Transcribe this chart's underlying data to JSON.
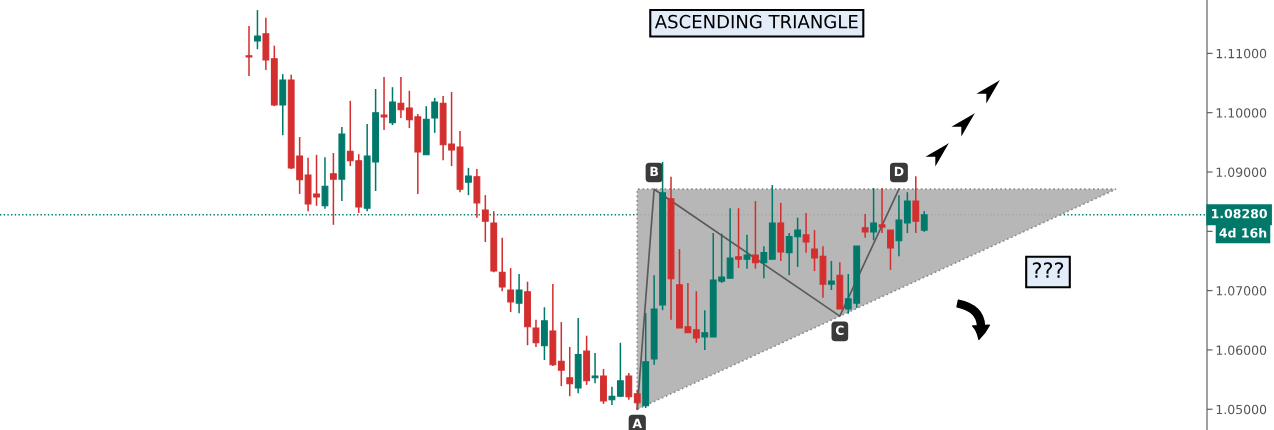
{
  "chart_data": {
    "type": "candlestick",
    "title": "ASCENDING TRIANGLE",
    "categories": [
      null,
      null,
      null,
      null,
      null,
      null,
      null,
      null,
      null,
      null,
      null,
      null,
      null,
      null,
      null,
      null,
      null,
      null,
      null,
      null,
      null,
      null,
      null,
      null,
      null,
      null,
      null,
      null,
      null,
      null,
      null,
      null,
      null,
      null,
      null,
      null,
      null,
      null,
      null,
      null,
      null,
      null,
      null,
      null,
      null,
      null,
      null,
      null,
      null,
      null,
      null,
      null,
      null,
      null,
      null,
      null,
      null,
      null,
      null,
      null,
      null,
      null,
      null,
      null,
      null,
      null,
      null,
      null,
      null,
      null,
      null,
      null,
      null,
      null,
      null,
      null,
      null,
      null,
      null,
      null,
      null,
      null,
      null,
      null,
      null,
      null,
      null,
      null,
      null,
      null,
      null,
      null,
      null,
      null,
      null,
      null,
      null,
      null,
      null,
      null,
      null,
      null,
      null,
      null,
      null,
      null,
      null,
      null,
      null,
      null,
      null,
      null,
      null,
      null,
      null,
      null,
      null,
      null,
      null,
      null,
      null,
      null,
      null,
      null,
      null,
      null,
      null,
      null,
      null,
      null,
      null,
      null,
      null,
      null,
      null,
      null,
      null,
      null,
      null,
      null,
      null,
      null,
      null
    ],
    "ohlc": [
      null,
      null,
      null,
      null,
      null,
      null,
      null,
      null,
      null,
      null,
      null,
      null,
      null,
      null,
      null,
      null,
      null,
      null,
      null,
      null,
      null,
      null,
      null,
      null,
      null,
      null,
      null,
      null,
      null,
      [
        1.1096,
        1.1146,
        1.1062,
        1.1094
      ],
      [
        1.1121,
        1.1173,
        1.1107,
        1.1129
      ],
      [
        1.1133,
        1.116,
        1.1072,
        1.1089
      ],
      [
        1.1091,
        1.1113,
        1.1011,
        1.1013
      ],
      [
        1.1013,
        1.1065,
        1.0962,
        1.1055
      ],
      [
        1.1055,
        1.1064,
        1.0905,
        1.0907
      ],
      [
        1.0927,
        1.0959,
        1.0863,
        1.0887
      ],
      [
        1.0895,
        1.0924,
        1.0834,
        1.0846
      ],
      [
        1.0863,
        1.0929,
        1.0843,
        1.0858
      ],
      [
        1.0843,
        1.0925,
        1.0838,
        1.0876
      ],
      [
        1.0897,
        1.0932,
        1.0811,
        1.0888
      ],
      [
        1.0888,
        1.0976,
        1.0851,
        1.0964
      ],
      [
        1.0935,
        1.102,
        1.091,
        1.0919
      ],
      [
        1.0919,
        1.093,
        1.0831,
        1.0841
      ],
      [
        1.0839,
        1.0981,
        1.0834,
        1.0927
      ],
      [
        1.0917,
        1.104,
        1.0868,
        1.1
      ],
      [
        1.0996,
        1.106,
        1.0971,
        1.0993
      ],
      [
        1.0983,
        1.1043,
        1.0979,
        1.1018
      ],
      [
        1.1016,
        1.106,
        1.0991,
        1.1005
      ],
      [
        1.1008,
        1.1037,
        1.0974,
        1.0988
      ],
      [
        1.0993,
        1.0998,
        1.0863,
        1.0934
      ],
      [
        1.0929,
        1.1011,
        1.0929,
        1.0989
      ],
      [
        1.0991,
        1.1025,
        1.0966,
        1.1018
      ],
      [
        1.1016,
        1.1028,
        1.092,
        1.0946
      ],
      [
        1.0947,
        1.1035,
        1.091,
        1.0937
      ],
      [
        1.0942,
        1.0969,
        1.0866,
        1.0871
      ],
      [
        1.0883,
        1.0907,
        1.0861,
        1.0893
      ],
      [
        1.0892,
        1.0905,
        1.0823,
        1.0848
      ],
      [
        1.0836,
        1.0861,
        1.0782,
        1.0817
      ],
      [
        1.0814,
        1.0834,
        1.0731,
        1.0733
      ],
      [
        1.0731,
        1.0789,
        1.0699,
        1.0706
      ],
      [
        1.0701,
        1.0738,
        1.0664,
        1.0681
      ],
      [
        1.0679,
        1.0728,
        1.0662,
        1.0701
      ],
      [
        1.0698,
        1.0715,
        1.0608,
        1.0639
      ],
      [
        1.0637,
        1.0651,
        1.0605,
        1.0612
      ],
      [
        1.0607,
        1.0672,
        1.0583,
        1.0649
      ],
      [
        1.0632,
        1.0711,
        1.0573,
        1.0575
      ],
      [
        1.0581,
        1.0647,
        1.0539,
        1.0566
      ],
      [
        1.0553,
        1.0605,
        1.0522,
        1.0543
      ],
      [
        1.0536,
        1.0654,
        1.0527,
        1.0592
      ],
      [
        1.0598,
        1.0624,
        1.0541,
        1.0548
      ],
      [
        1.0553,
        1.0595,
        1.0544,
        1.0556
      ],
      [
        1.0556,
        1.0568,
        1.0509,
        1.0514
      ],
      [
        1.0516,
        1.0538,
        1.0507,
        1.0522
      ],
      [
        1.0522,
        1.0612,
        1.0521,
        1.0548
      ],
      [
        1.0556,
        1.0561,
        1.0516,
        1.0521
      ],
      [
        1.0526,
        1.0533,
        1.05,
        1.0511
      ],
      [
        1.0506,
        1.0662,
        1.0502,
        1.058
      ],
      [
        1.0585,
        1.0726,
        1.0575,
        1.0669
      ],
      [
        1.0676,
        1.0917,
        1.0667,
        1.0865
      ],
      [
        1.0855,
        1.0892,
        1.0651,
        1.072
      ],
      [
        1.071,
        1.077,
        1.0637,
        1.0637
      ],
      [
        1.0639,
        1.0713,
        1.0629,
        1.0629
      ],
      [
        1.0634,
        1.0699,
        1.0612,
        1.062
      ],
      [
        1.0622,
        1.0667,
        1.06,
        1.0629
      ],
      [
        1.0622,
        1.0797,
        1.0622,
        1.0718
      ],
      [
        1.0716,
        1.0796,
        1.0713,
        1.0723
      ],
      [
        1.0721,
        1.0839,
        1.0721,
        1.0755
      ],
      [
        1.0757,
        1.0839,
        1.0738,
        1.0753
      ],
      [
        1.0753,
        1.0794,
        1.0737,
        1.076
      ],
      [
        1.076,
        1.0851,
        1.0737,
        1.0747
      ],
      [
        1.0747,
        1.0775,
        1.0721,
        1.0764
      ],
      [
        1.0753,
        1.0878,
        1.0753,
        1.0814
      ],
      [
        1.0814,
        1.0848,
        1.075,
        1.0765
      ],
      [
        1.0764,
        1.0797,
        1.0726,
        1.0791
      ],
      [
        1.0791,
        1.0823,
        1.074,
        1.0802
      ],
      [
        1.0794,
        1.0831,
        1.0764,
        1.0782
      ],
      [
        1.077,
        1.0802,
        1.0733,
        1.0755
      ],
      [
        1.0758,
        1.0775,
        1.0688,
        1.0711
      ],
      [
        1.0711,
        1.075,
        1.0701,
        1.0716
      ],
      [
        1.0726,
        1.0748,
        1.0669,
        1.0669
      ],
      [
        1.0669,
        1.0728,
        1.0661,
        1.0686
      ],
      [
        1.0679,
        1.0775,
        1.0671,
        1.0775
      ],
      [
        1.0806,
        1.0829,
        1.0789,
        1.0799
      ],
      [
        1.0799,
        1.0873,
        1.0785,
        1.0814
      ],
      [
        1.0811,
        1.0873,
        1.0797,
        1.0807
      ],
      [
        1.0802,
        1.0802,
        1.0735,
        1.0772
      ],
      [
        1.0784,
        1.0861,
        1.0758,
        1.0819
      ],
      [
        1.0814,
        1.0866,
        1.0797,
        1.0851
      ],
      [
        1.0851,
        1.0893,
        1.0797,
        1.0817
      ],
      [
        1.0802,
        1.0834,
        1.0799,
        1.0828
      ],
      null,
      null,
      null,
      null,
      null,
      null,
      null,
      null,
      null,
      null,
      null,
      null,
      null,
      null,
      null,
      null,
      null,
      null,
      null,
      null,
      null,
      null,
      null,
      null,
      null,
      null,
      null,
      null,
      null,
      null,
      null,
      null,
      null
    ],
    "colors": [
      null,
      null,
      null,
      null,
      null,
      null,
      null,
      null,
      null,
      null,
      null,
      null,
      null,
      null,
      null,
      null,
      null,
      null,
      null,
      null,
      null,
      null,
      null,
      null,
      null,
      null,
      null,
      null,
      null,
      "#d32f2f",
      "#00796b",
      "#d32f2f",
      "#d32f2f",
      "#00796b",
      "#d32f2f",
      "#d32f2f",
      "#d32f2f",
      "#d32f2f",
      "#00796b",
      "#d32f2f",
      "#00796b",
      "#d32f2f",
      "#d32f2f",
      "#00796b",
      "#00796b",
      "#d32f2f",
      "#00796b",
      "#d32f2f",
      "#d32f2f",
      "#d32f2f",
      "#00796b",
      "#00796b",
      "#d32f2f",
      "#d32f2f",
      "#d32f2f",
      "#00796b",
      "#d32f2f",
      "#d32f2f",
      "#d32f2f",
      "#d32f2f",
      "#d32f2f",
      "#00796b",
      "#d32f2f",
      "#d32f2f",
      "#00796b",
      "#d32f2f",
      "#d32f2f",
      "#d32f2f",
      "#00796b",
      "#d32f2f",
      "#00796b",
      "#d32f2f",
      "#00796b",
      "#00796b",
      "#d32f2f",
      "#d32f2f",
      "#00796b",
      "#00796b",
      "#00796b",
      "#d32f2f",
      "#d32f2f",
      "#d32f2f",
      "#d32f2f",
      "#00796b",
      "#00796b",
      "#00796b",
      "#00796b",
      "#d32f2f",
      "#00796b",
      "#d32f2f",
      "#00796b",
      "#00796b",
      "#d32f2f",
      "#00796b",
      "#00796b",
      "#d32f2f",
      "#d32f2f",
      "#d32f2f",
      "#00796b",
      "#d32f2f",
      "#00796b",
      "#00796b",
      "#d32f2f",
      "#00796b",
      "#d32f2f",
      "#d32f2f",
      "#00796b",
      "#00796b",
      "#d32f2f",
      "#00796b",
      null,
      null,
      null,
      null,
      null,
      null,
      null,
      null,
      null,
      null,
      null,
      null,
      null,
      null,
      null,
      null,
      null,
      null,
      null,
      null,
      null,
      null,
      null,
      null,
      null,
      null,
      null,
      null,
      null,
      null,
      null,
      null,
      null
    ],
    "series": [
      {
        "type": "line",
        "color": "#5a5a5a",
        "values": [
          null,
          null,
          null,
          null,
          null,
          null,
          null,
          null,
          null,
          null,
          null,
          null,
          null,
          null,
          null,
          null,
          null,
          null,
          null,
          null,
          null,
          null,
          null,
          null,
          null,
          null,
          null,
          null,
          null,
          null,
          null,
          null,
          null,
          null,
          null,
          null,
          null,
          null,
          null,
          null,
          null,
          null,
          null,
          null,
          null,
          null,
          null,
          null,
          null,
          null,
          null,
          null,
          null,
          null,
          null,
          null,
          null,
          null,
          null,
          null,
          null,
          null,
          null,
          null,
          null,
          null,
          null,
          null,
          null,
          null,
          null,
          null,
          null,
          null,
          null,
          1.05,
          null,
          1.0871,
          null,
          null,
          null,
          null,
          null,
          null,
          null,
          null,
          null,
          null,
          null,
          null,
          null,
          null,
          null,
          null,
          null,
          null,
          null,
          null,
          null,
          1.0657,
          null,
          null,
          null,
          null,
          null,
          null,
          1.0871,
          null,
          null,
          null,
          null,
          null,
          null,
          null,
          null,
          null,
          null,
          null,
          null,
          null,
          null,
          null,
          null,
          null,
          null,
          null,
          null,
          null,
          null,
          null,
          null,
          null,
          null,
          null,
          null,
          null,
          null,
          null,
          null,
          null,
          null,
          null,
          null
        ]
      }
    ],
    "ylim": [
      1.0465,
      1.119
    ],
    "yticks": [
      {
        "value": 1.05,
        "label": "1.05000"
      },
      {
        "value": 1.06,
        "label": "1.06000"
      },
      {
        "value": 1.07,
        "label": "1.07000"
      },
      {
        "value": 1.08,
        "label": null
      },
      {
        "value": 1.09,
        "label": "1.09000"
      },
      {
        "value": 1.1,
        "label": "1.10000"
      },
      {
        "value": 1.11,
        "label": "1.11000"
      }
    ],
    "ref_lines": [
      {
        "axis": "y",
        "value": 1.0828,
        "label": "1.08280",
        "color": "#00796b",
        "line_style": "dotted"
      }
    ],
    "annotations": [
      {
        "text": "A",
        "y": 1.05
      },
      {
        "text": "B",
        "y": 1.0871
      },
      {
        "text": "C",
        "y": 1.0657
      },
      {
        "text": "D",
        "y": 1.0871
      },
      "???",
      "4d 16h"
    ],
    "tick_labels": "y",
    "grid": false,
    "legend": false
  }
}
